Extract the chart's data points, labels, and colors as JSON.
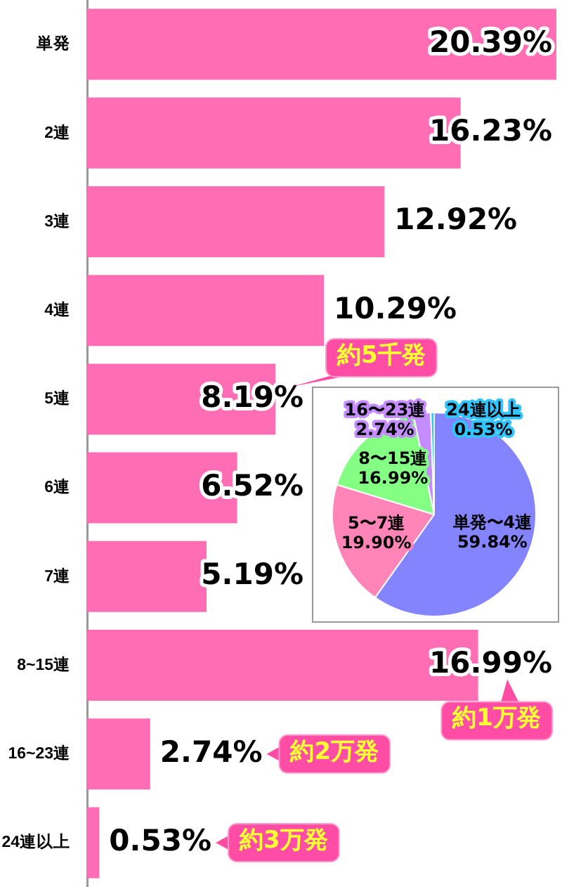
{
  "chart_data": [
    {
      "type": "bar",
      "orientation": "horizontal",
      "categories": [
        "単発",
        "2連",
        "3連",
        "4連",
        "5連",
        "6連",
        "7連",
        "8~15連",
        "16~23連",
        "24連以上"
      ],
      "values": [
        20.39,
        16.23,
        12.92,
        10.29,
        8.19,
        6.52,
        5.19,
        16.99,
        2.74,
        0.53
      ],
      "color": "#ff6eb4",
      "value_labels": [
        "20.39%",
        "16.23%",
        "12.92%",
        "10.29%",
        "8.19%",
        "6.52%",
        "5.19%",
        "16.99%",
        "2.74%",
        "0.53%"
      ],
      "annotations": [
        "約5千発",
        "約1万発",
        "約2万発",
        "約3万発"
      ],
      "tick_labels": "y"
    },
    {
      "type": "pie",
      "categories": [
        "単発〜4連",
        "5〜7連",
        "8〜15連",
        "16〜23連",
        "24連以上"
      ],
      "values": [
        59.84,
        19.9,
        16.99,
        2.74,
        0.53
      ],
      "colors": [
        "#8484ff",
        "#ff84b8",
        "#84ff84",
        "#c48cff",
        "#33c4ff"
      ],
      "value_labels": [
        "59.84%",
        "19.90%",
        "16.99%",
        "2.74%",
        "0.53%"
      ]
    }
  ]
}
